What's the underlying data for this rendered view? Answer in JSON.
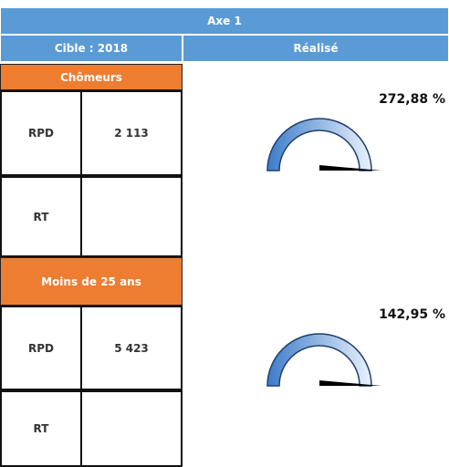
{
  "header": {
    "title": "Axe 1",
    "target": "Cible : 2018",
    "actual": "Réalisé"
  },
  "sections": [
    {
      "label": "Chômeurs",
      "rows": [
        {
          "label": "RPD",
          "value": "2 113"
        },
        {
          "label": "RT"
        }
      ],
      "percent": "272,88 %"
    },
    {
      "label": "Moins de 25 ans",
      "rows": [
        {
          "label": "RPD",
          "value": "5 423"
        },
        {
          "label": "RT"
        }
      ],
      "percent": "142,95 %"
    }
  ]
}
